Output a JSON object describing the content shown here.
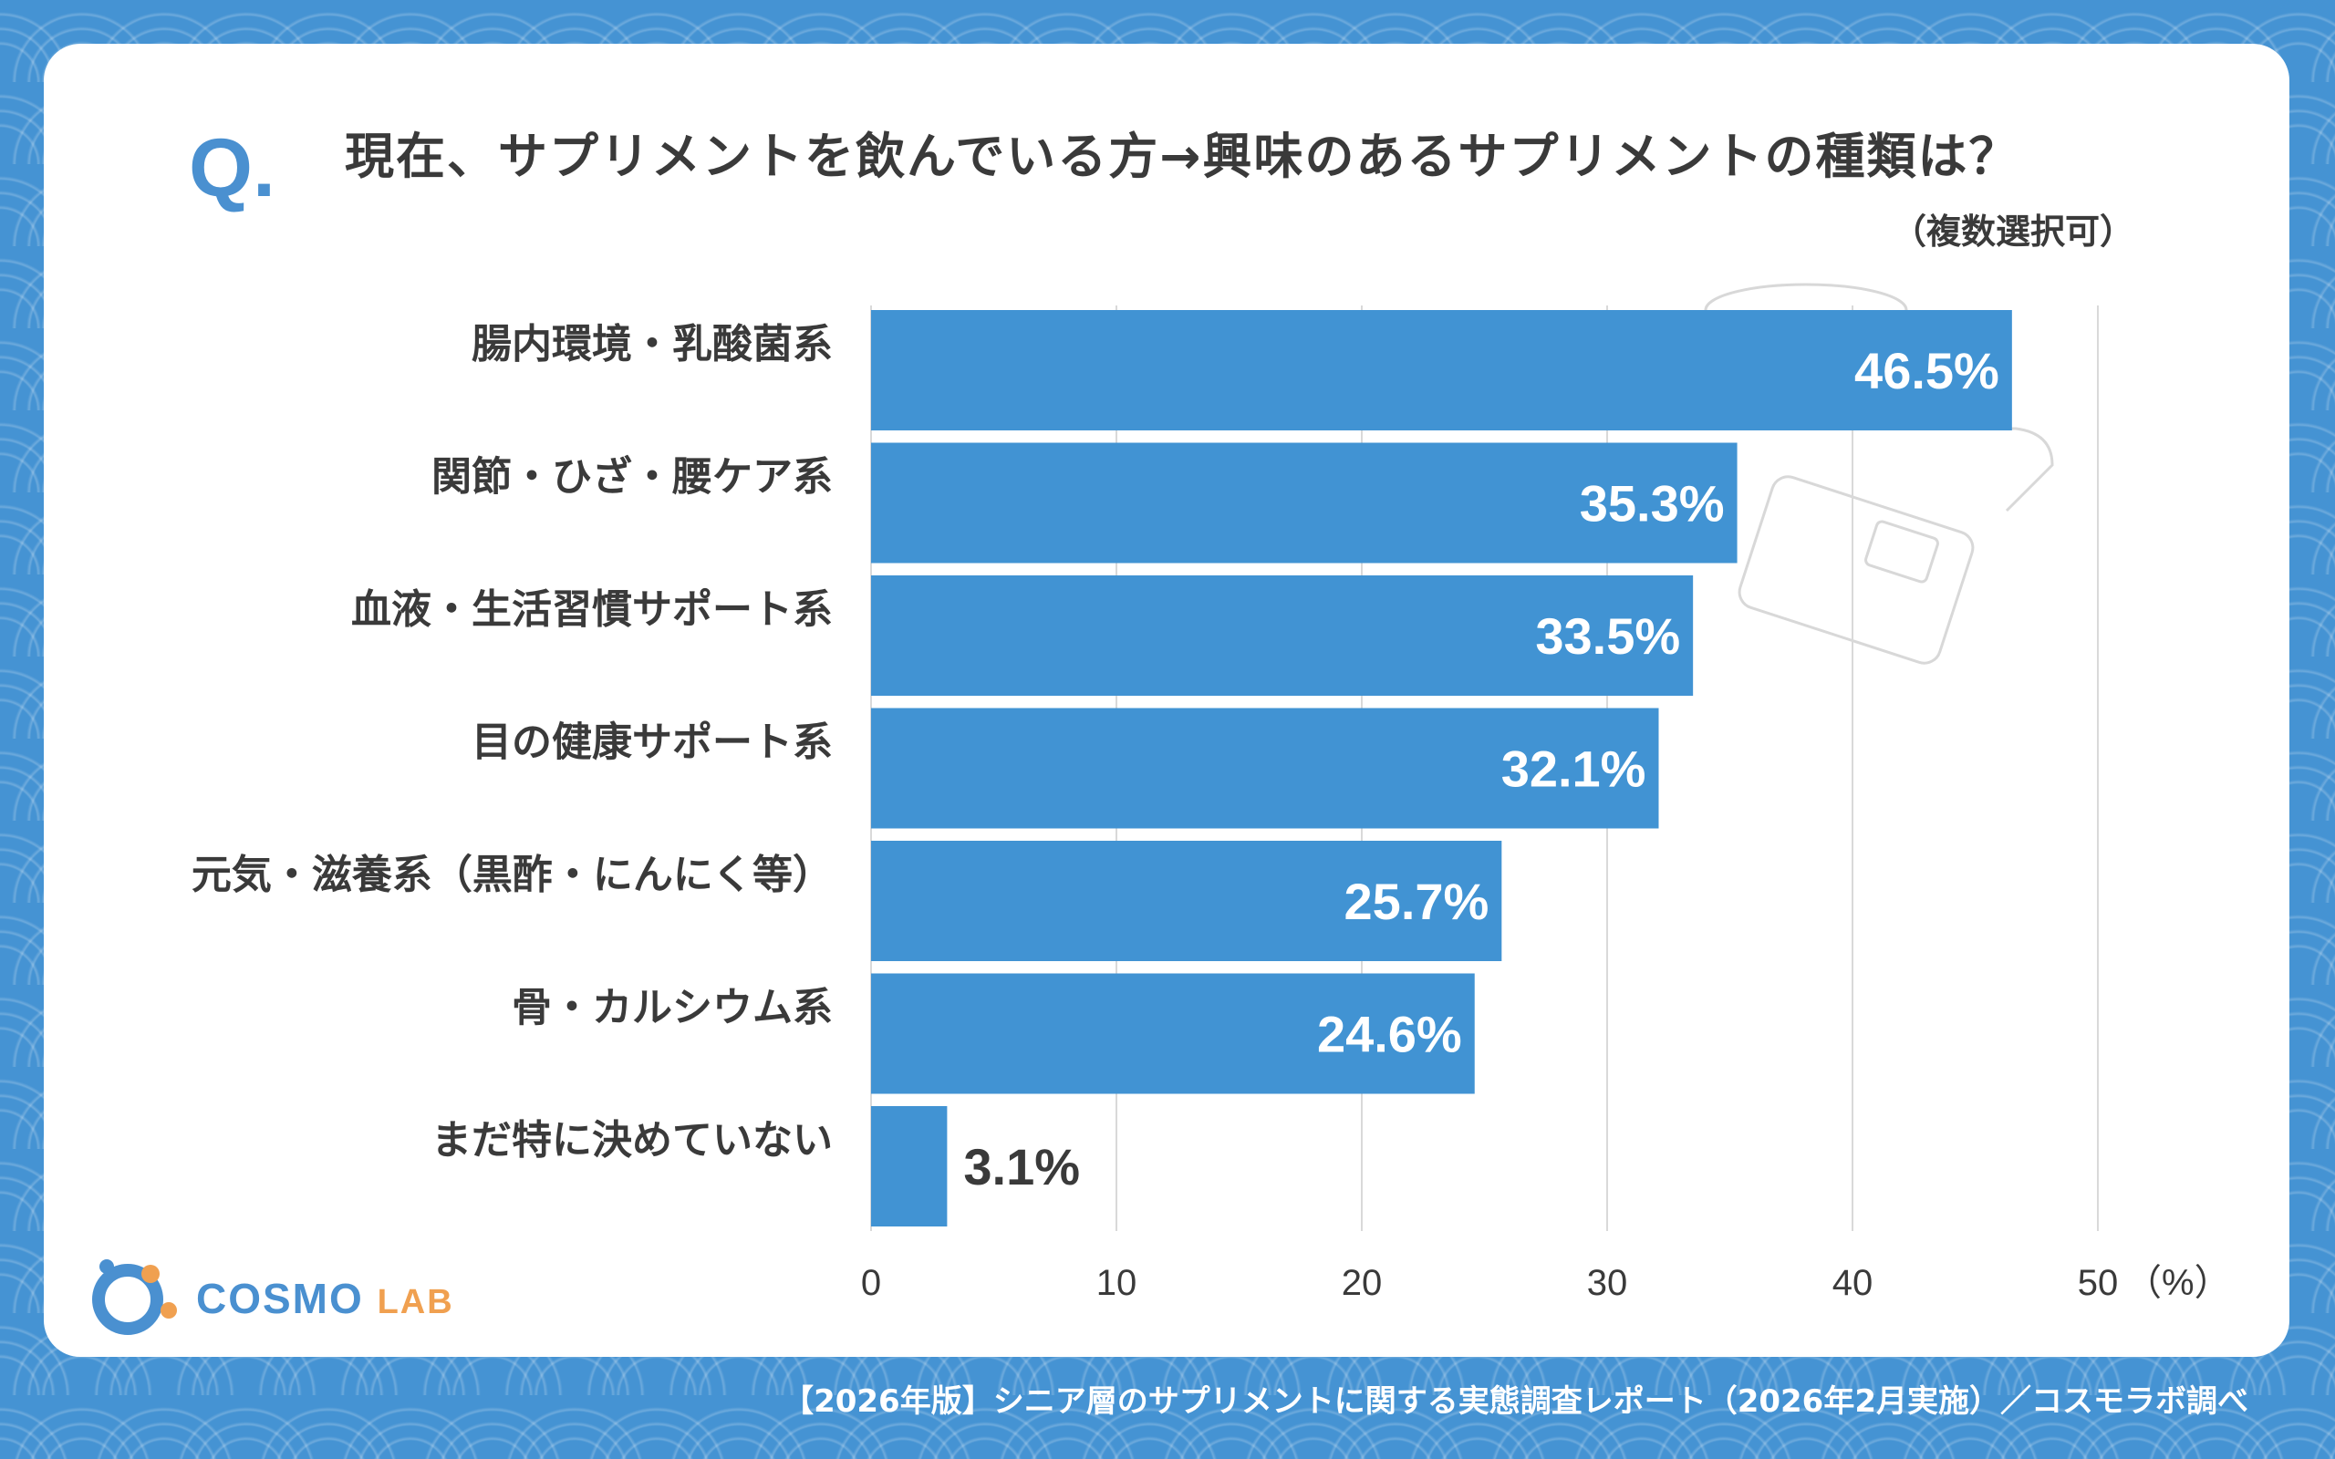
{
  "header": {
    "q_mark": "Q.",
    "title": "現在、サプリメントを飲んでいる方→興味のあるサプリメントの種類は？",
    "subtitle": "（複数選択可）"
  },
  "chart_data": {
    "type": "bar",
    "orientation": "horizontal",
    "categories": [
      "腸内環境・乳酸菌系",
      "関節・ひざ・腰ケア系",
      "血液・生活習慣サポート系",
      "目の健康サポート系",
      "元気・滋養系（黒酢・にんにく等）",
      "骨・カルシウム系",
      "まだ特に決めていない"
    ],
    "values": [
      46.5,
      35.3,
      33.5,
      32.1,
      25.7,
      24.6,
      3.1
    ],
    "value_labels": [
      "46.5%",
      "35.3%",
      "33.5%",
      "32.1%",
      "25.7%",
      "24.6%",
      "3.1%"
    ],
    "xlim": [
      0,
      50
    ],
    "ticks": [
      0,
      10,
      20,
      30,
      40,
      50
    ],
    "tick_labels": [
      "0",
      "10",
      "20",
      "30",
      "40",
      "50"
    ],
    "unit_label": "（%）",
    "grid": true,
    "bar_color": "#4193d3"
  },
  "logo": {
    "text_main": "COSMO",
    "text_sub": "LAB"
  },
  "footer": "【2026年版】シニア層のサプリメントに関する実態調査レポート（2026年2月実施）／コスモラボ調べ",
  "colors": {
    "accent": "#4a90d0",
    "background": "#4593d3",
    "logo_orange": "#f0a050"
  }
}
